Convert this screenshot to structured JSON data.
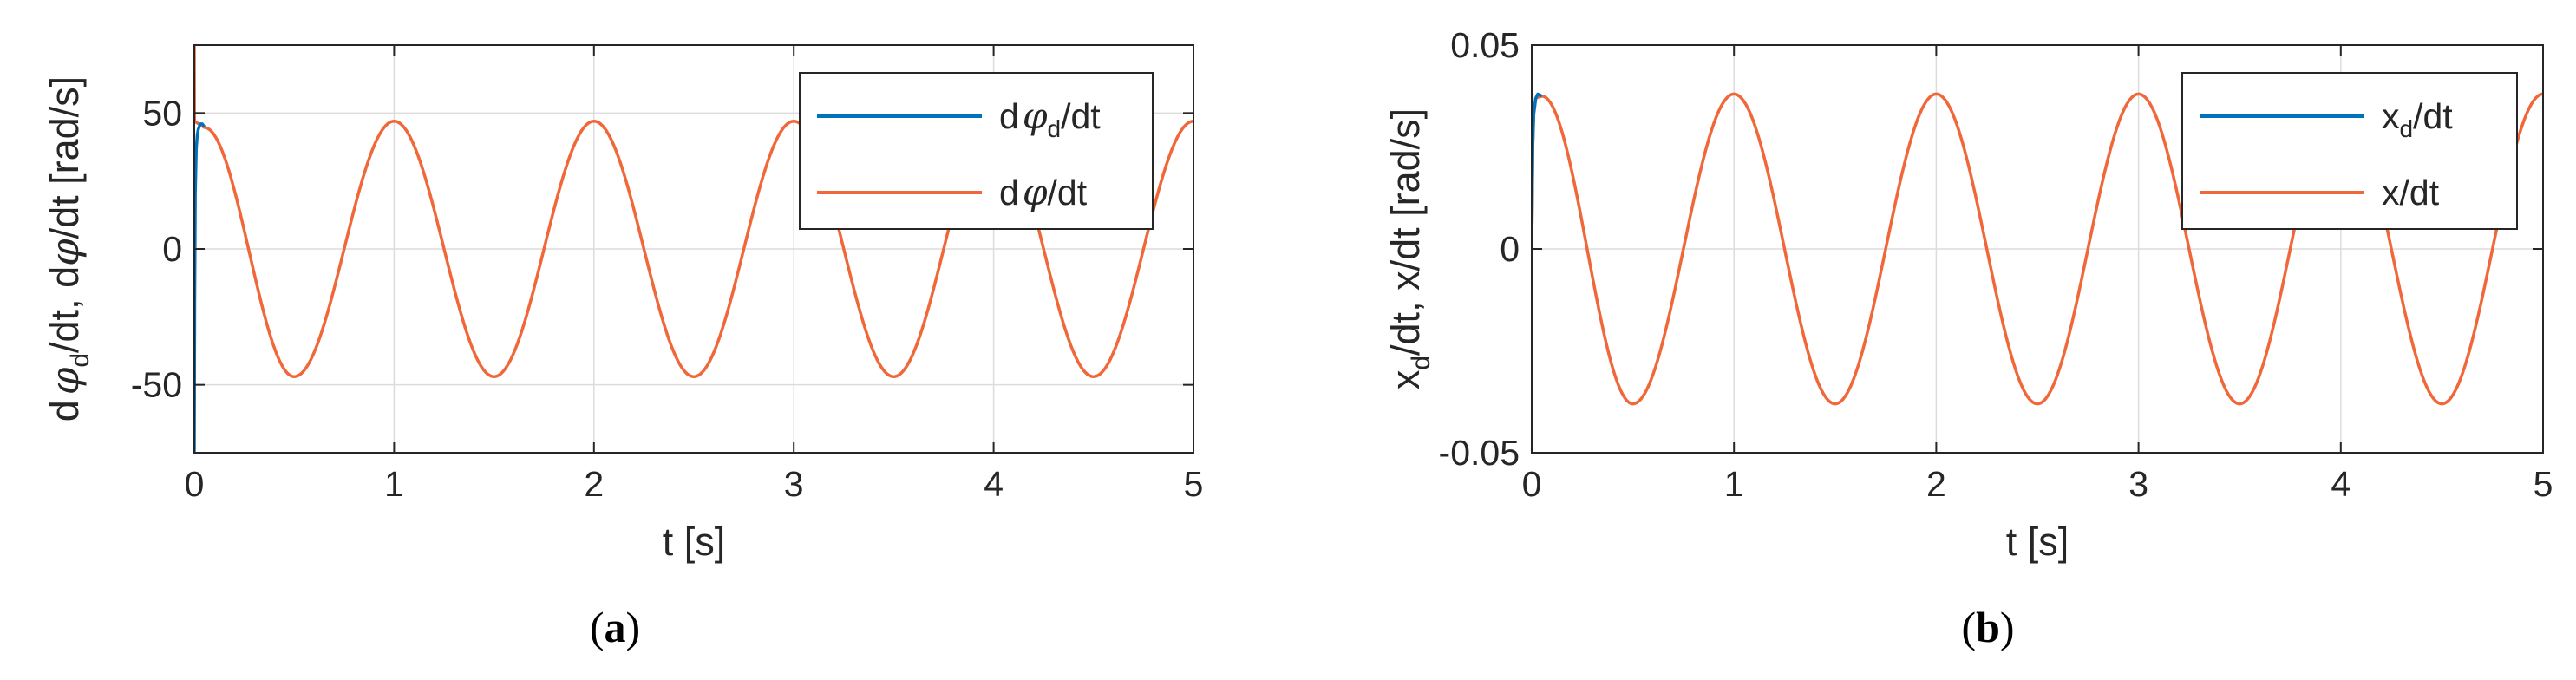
{
  "panels": [
    {
      "caption_letter": "a",
      "caption_open": "(",
      "caption_close": ")",
      "ylabel": {
        "a": "d",
        "b": "φ",
        "c": "d",
        "d": "/dt, d",
        "e": "φ",
        "f": "/dt  [rad/s]"
      },
      "xlabel": "t [s]",
      "legend": [
        {
          "a": "d",
          "b": "φ",
          "c": "d",
          "d": "/dt"
        },
        {
          "a": "d",
          "b": "φ",
          "c": "",
          "d": "/dt"
        }
      ]
    },
    {
      "caption_letter": "b",
      "caption_open": "(",
      "caption_close": ")",
      "ylabel": {
        "a": "x",
        "b": "d",
        "c": "/dt, x/dt  [rad/s]"
      },
      "xlabel": "t [s]",
      "legend": [
        {
          "a": "x",
          "b": "d",
          "c": "/dt"
        },
        {
          "a": "x/dt",
          "b": "",
          "c": ""
        }
      ]
    }
  ],
  "chart_data": [
    {
      "type": "line",
      "xlabel": "t [s]",
      "ylabel": "dφd/dt, dφ/dt  [rad/s]",
      "xlim": [
        0,
        5
      ],
      "ylim": [
        -75,
        75
      ],
      "xticks": [
        "0",
        "1",
        "2",
        "3",
        "4",
        "5"
      ],
      "yticks": [
        "-50",
        "0",
        "50"
      ],
      "xtick_values": [
        0,
        1,
        2,
        3,
        4,
        5
      ],
      "ytick_values": [
        -50,
        0,
        50
      ],
      "grid": true,
      "legend_position": "top-right",
      "colors": {
        "series1": "#0072bd",
        "series2": "#f0683a",
        "grid": "#dcdcdc",
        "axis": "#262626"
      },
      "series": [
        {
          "name": "dφd/dt",
          "x": [
            0,
            0.002,
            0.005,
            0.01,
            0.015,
            0.02,
            0.025,
            0.03,
            0.035,
            0.04,
            0.05
          ],
          "y": [
            -75,
            -20,
            20,
            37,
            42,
            44,
            45,
            46,
            46,
            46,
            45
          ]
        },
        {
          "name": "dφ/dt",
          "x": [
            0,
            0.001,
            0.05,
            0.5,
            1,
            1.5,
            2,
            2.5,
            3,
            3.5,
            4,
            4.5,
            5
          ],
          "y": [
            75,
            47,
            44.7,
            -47,
            47,
            -47,
            47,
            -47,
            47,
            -47,
            47,
            -47,
            47
          ]
        }
      ]
    },
    {
      "type": "line",
      "xlabel": "t [s]",
      "ylabel": "xd/dt, x/dt  [rad/s]",
      "xlim": [
        0,
        5
      ],
      "ylim": [
        -0.05,
        0.05
      ],
      "xticks": [
        "0",
        "1",
        "2",
        "3",
        "4",
        "5"
      ],
      "yticks": [
        "-0.05",
        "0",
        "0.05"
      ],
      "xtick_values": [
        0,
        1,
        2,
        3,
        4,
        5
      ],
      "ytick_values": [
        -0.05,
        0,
        0.05
      ],
      "grid": true,
      "legend_position": "top-right",
      "colors": {
        "series1": "#0072bd",
        "series2": "#f0683a",
        "grid": "#dcdcdc",
        "axis": "#262626"
      },
      "series": [
        {
          "name": "xd/dt",
          "x": [
            0,
            0.005,
            0.01,
            0.02,
            0.03,
            0.05
          ],
          "y": [
            0,
            0.025,
            0.033,
            0.037,
            0.038,
            0.0375
          ]
        },
        {
          "name": "x/dt",
          "x": [
            0,
            0.005,
            0.01,
            0.02,
            0.05,
            0.5,
            1,
            1.5,
            2,
            2.5,
            3,
            3.5,
            4,
            4.5,
            5
          ],
          "y": [
            0,
            0.026,
            0.034,
            0.037,
            0.0375,
            -0.038,
            0.038,
            -0.038,
            0.038,
            -0.038,
            0.038,
            -0.038,
            0.038,
            -0.038,
            0.038
          ]
        }
      ]
    }
  ]
}
